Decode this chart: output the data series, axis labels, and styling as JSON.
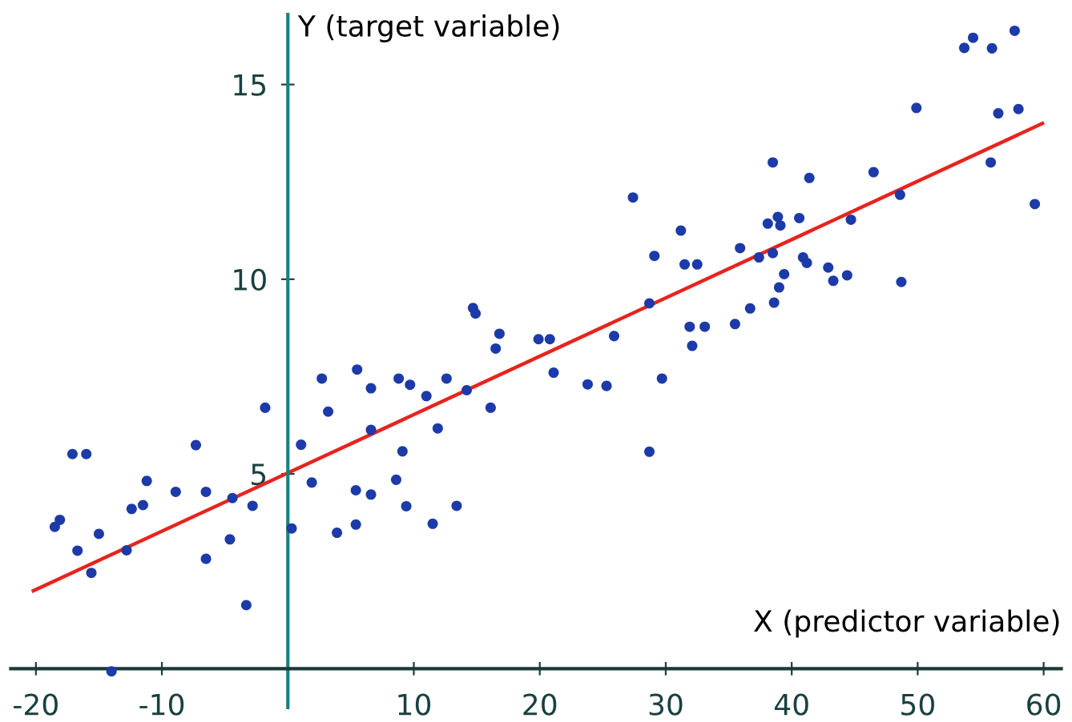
{
  "chart_data": {
    "type": "scatter",
    "xlabel": "X (predictor variable)",
    "ylabel": "Y (target variable)",
    "xlim": [
      -22,
      61.4
    ],
    "ylim": [
      -1,
      16.8
    ],
    "xticks": [
      -20,
      -10,
      10,
      20,
      30,
      40,
      50,
      60
    ],
    "yticks": [
      5,
      10,
      15
    ],
    "grid": false,
    "legend": false,
    "marker": "circle",
    "series": [
      {
        "color": "#1c3aa8",
        "x": [
          -18.5,
          -18.1,
          -17.1,
          -16.0,
          -16.7,
          -15.6,
          -15.0,
          -14.0,
          -12.8,
          -12.4,
          -11.5,
          -11.2,
          -8.9,
          -7.3,
          -6.5,
          -6.5,
          -4.6,
          -4.4,
          -3.3,
          -2.8,
          -1.8,
          0.3,
          1.05,
          1.9,
          2.7,
          3.2,
          3.9,
          5.4,
          5.4,
          5.5,
          6.6,
          6.6,
          6.6,
          8.6,
          8.8,
          9.1,
          9.4,
          9.7,
          11.0,
          11.5,
          11.9,
          12.6,
          13.4,
          14.2,
          14.7,
          14.9,
          16.1,
          16.5,
          16.8,
          19.9,
          20.8,
          21.1,
          23.8,
          25.3,
          25.9,
          27.4,
          28.7,
          28.7,
          29.1,
          29.7,
          31.2,
          31.5,
          32.5,
          31.9,
          32.1,
          33.1,
          35.5,
          35.9,
          36.7,
          37.4,
          38.1,
          38.5,
          38.5,
          38.6,
          38.9,
          39.0,
          39.1,
          39.4,
          40.6,
          40.9,
          41.2,
          41.4,
          42.9,
          43.3,
          44.4,
          44.7,
          46.5,
          48.6,
          48.7,
          49.9,
          53.7,
          54.4,
          55.8,
          55.9,
          56.4,
          57.7,
          58.0,
          59.3
        ],
        "values": [
          3.64,
          3.82,
          5.51,
          5.51,
          3.03,
          2.46,
          3.46,
          -0.07,
          3.04,
          4.1,
          4.2,
          4.82,
          4.54,
          5.74,
          4.54,
          2.82,
          3.32,
          4.38,
          1.63,
          4.18,
          6.7,
          3.6,
          5.75,
          4.78,
          7.45,
          6.6,
          3.49,
          3.7,
          4.58,
          7.68,
          4.47,
          7.2,
          6.13,
          4.85,
          7.45,
          5.58,
          4.17,
          7.29,
          7.0,
          3.72,
          6.17,
          7.45,
          4.18,
          7.15,
          9.26,
          9.12,
          6.7,
          8.22,
          8.6,
          8.46,
          8.46,
          7.6,
          7.3,
          7.26,
          8.54,
          12.1,
          5.57,
          9.38,
          10.6,
          7.45,
          11.25,
          10.38,
          10.38,
          8.78,
          8.29,
          8.78,
          8.85,
          10.8,
          9.25,
          10.56,
          11.43,
          10.67,
          13.0,
          9.4,
          11.6,
          9.79,
          11.38,
          10.13,
          11.57,
          10.56,
          10.42,
          12.6,
          10.3,
          9.96,
          10.1,
          11.53,
          12.75,
          12.17,
          9.93,
          14.4,
          15.94,
          16.2,
          13.0,
          15.93,
          14.26,
          16.38,
          14.37,
          11.93
        ]
      },
      {
        "type": "line",
        "color": "#e8231d",
        "x": [
          -20.2,
          59.9
        ],
        "values": [
          2.0,
          14.0
        ],
        "marker": "none"
      }
    ]
  }
}
